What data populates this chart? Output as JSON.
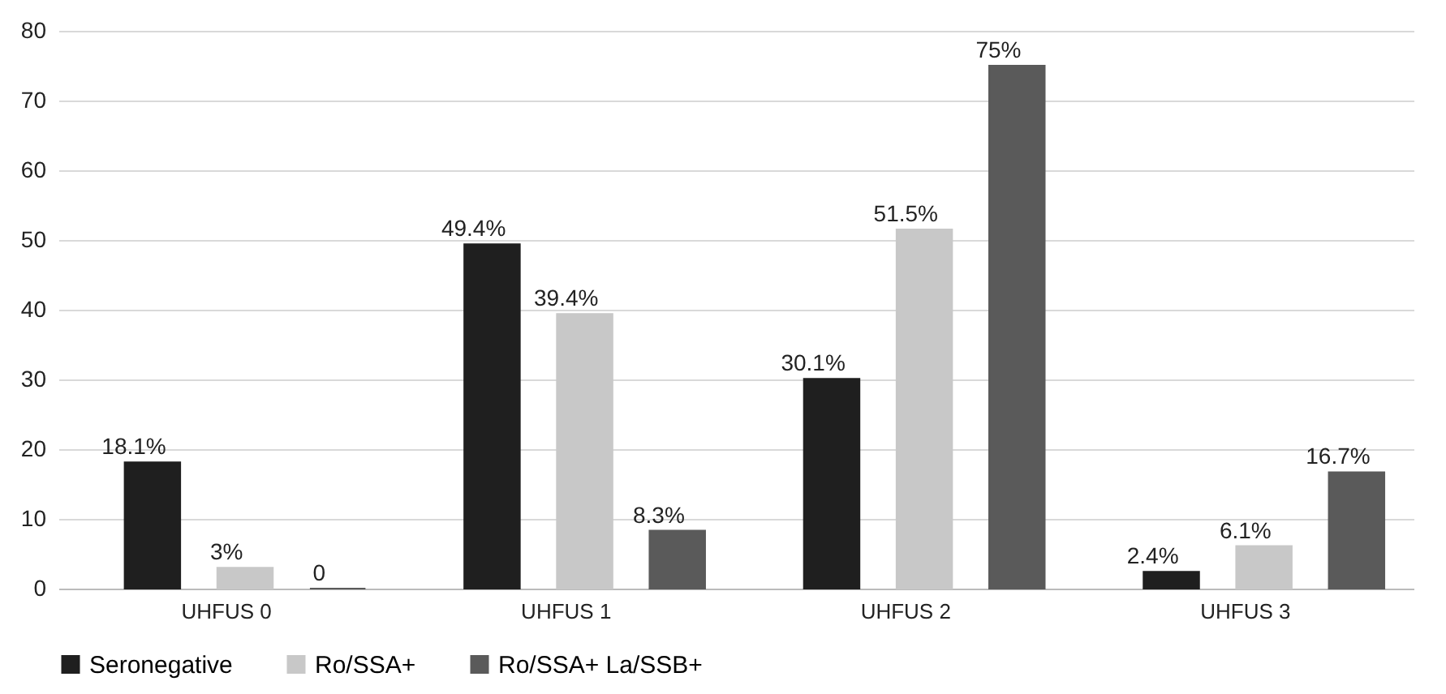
{
  "chart_data": {
    "type": "bar",
    "categories": [
      "UHFUS 0",
      "UHFUS 1",
      "UHFUS 2",
      "UHFUS 3"
    ],
    "series": [
      {
        "name": "Seronegative",
        "color": "#1f1f1f",
        "values": [
          18.1,
          49.4,
          30.1,
          2.4
        ],
        "value_labels": [
          "18.1%",
          "49.4%",
          "30.1%",
          "2.4%"
        ]
      },
      {
        "name": "Ro/SSA+",
        "color": "#c8c8c8",
        "values": [
          3,
          39.4,
          51.5,
          6.1
        ],
        "value_labels": [
          "3%",
          "39.4%",
          "51.5%",
          "6.1%"
        ]
      },
      {
        "name": "Ro/SSA+ La/SSB+",
        "color": "#5a5a5a",
        "values": [
          0,
          8.3,
          75,
          16.7
        ],
        "value_labels": [
          "0",
          "8.3%",
          "75%",
          "16.7%"
        ]
      }
    ],
    "ylim": [
      0,
      80
    ],
    "yticks": [
      0,
      10,
      20,
      30,
      40,
      50,
      60,
      70,
      80
    ],
    "grid": "y",
    "legend": "bottom"
  }
}
